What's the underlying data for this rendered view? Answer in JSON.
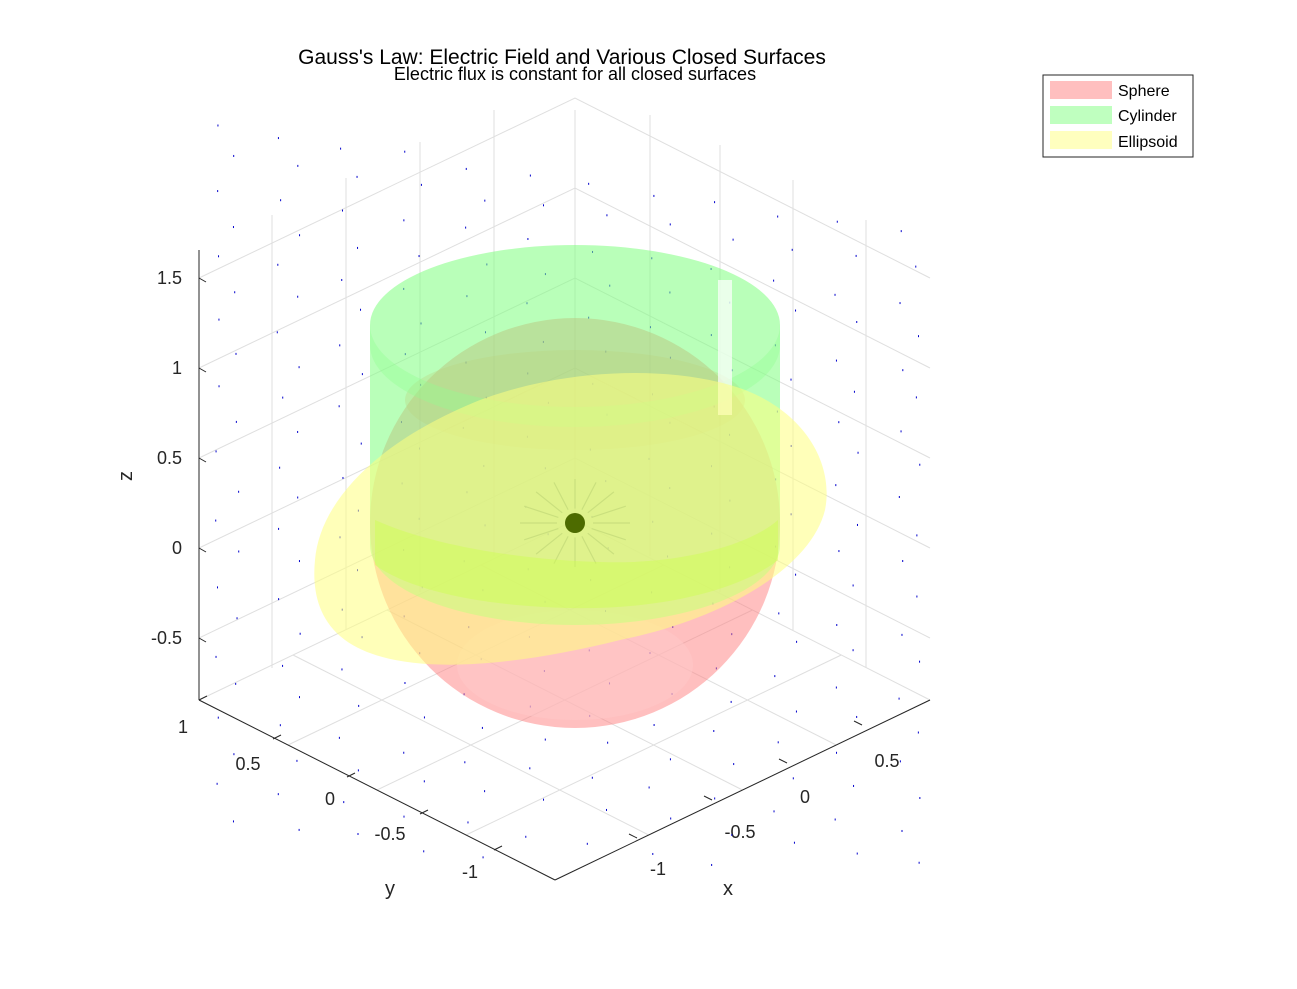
{
  "chart_data": {
    "type": "3d-surface",
    "title": "Gauss's Law: Electric Field and Various Closed Surfaces",
    "subtitle": "Electric flux is constant for all closed surfaces",
    "xlabel": "x",
    "ylabel": "y",
    "zlabel": "z",
    "xlim": [
      -1.2,
      1
    ],
    "ylim": [
      -1.2,
      1
    ],
    "zlim": [
      -0.8,
      1.6
    ],
    "x_ticks": [
      "-1",
      "-0.5",
      "0",
      "0.5"
    ],
    "y_ticks": [
      "1",
      "0.5",
      "0",
      "-0.5",
      "-1"
    ],
    "z_ticks": [
      "1.5",
      "1",
      "0.5",
      "0",
      "-0.5"
    ],
    "grid": true,
    "view": "3d-isometric",
    "legend_position": "top-right",
    "charge": {
      "position": [
        0,
        0,
        0
      ],
      "color": "#4d6b00"
    },
    "surfaces": [
      {
        "name": "Sphere",
        "color": "#ff7f7f",
        "radius": 1
      },
      {
        "name": "Cylinder",
        "color": "#7fff7f",
        "radius": 1,
        "z_range": [
          -0.5,
          1.5
        ]
      },
      {
        "name": "Ellipsoid",
        "color": "#ffff7f",
        "semi_axes": [
          1.2,
          0.8,
          0.6
        ]
      }
    ],
    "field_vectors": {
      "color": "#0000cc",
      "description": "radial electric field quiver"
    }
  }
}
